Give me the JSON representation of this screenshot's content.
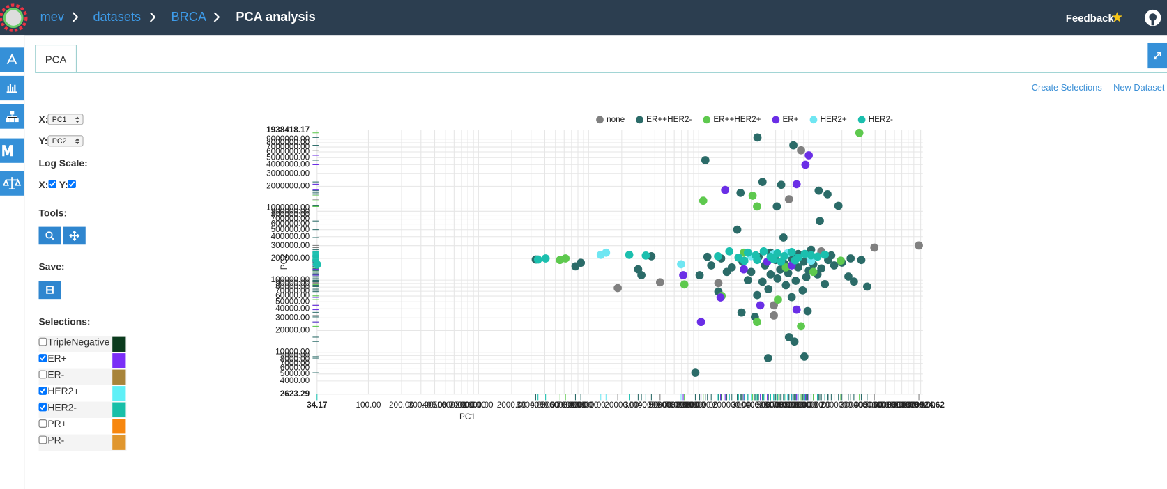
{
  "navbar": {
    "crumbs": [
      "mev",
      "datasets",
      "BRCA"
    ],
    "title": "PCA analysis",
    "feedback": "Feedback"
  },
  "tabs": [
    "PCA"
  ],
  "actions": [
    "Create Selections",
    "New Dataset"
  ],
  "controls": {
    "x_label": "X:",
    "x_value": "PC1",
    "y_label": "Y:",
    "y_value": "PC2",
    "log_scale": "Log Scale:",
    "log_x_label": "X:",
    "log_y_label": "Y:",
    "tools": "Tools:",
    "save": "Save:",
    "selections": "Selections:"
  },
  "selections": [
    {
      "name": "TripleNegative",
      "checked": false,
      "color": "#0b3b1d"
    },
    {
      "name": "ER+",
      "checked": true,
      "color": "#7b2ff7"
    },
    {
      "name": "ER-",
      "checked": false,
      "color": "#a8843a"
    },
    {
      "name": "HER2+",
      "checked": true,
      "color": "#5ff0f7"
    },
    {
      "name": "HER2-",
      "checked": true,
      "color": "#18bfa8"
    },
    {
      "name": "PR+",
      "checked": false,
      "color": "#f7870f"
    },
    {
      "name": "PR-",
      "checked": false,
      "color": "#e0962e"
    }
  ],
  "chart_data": {
    "type": "scatter",
    "x_label": "PC1",
    "y_label": "PC2",
    "log_x": true,
    "log_y": true,
    "grid": true,
    "legend": "top",
    "xlim": [
      34.17,
      10379924.62
    ],
    "ylim": [
      2623.29,
      12000000
    ],
    "y_top_label": "1938418.17",
    "xticks": [
      34.17,
      {
        "value": 100,
        "label": "100.00"
      },
      {
        "value": 200,
        "label": "200.00"
      },
      {
        "value": 300,
        "label": "300.00"
      },
      {
        "value": 400,
        "label": "400.00"
      },
      {
        "value": 500,
        "label": "500.00"
      },
      {
        "value": 600,
        "label": "600.00"
      },
      {
        "value": 700,
        "label": "700.00"
      },
      {
        "value": 800,
        "label": "800.00"
      },
      {
        "value": 900,
        "label": "900.00"
      },
      {
        "value": 1000,
        "label": "1000.00"
      },
      {
        "value": 2000,
        "label": "2000.00"
      },
      {
        "value": 3000,
        "label": "3000.00"
      },
      {
        "value": 4000,
        "label": "4000.00"
      },
      {
        "value": 5000,
        "label": "5000.00"
      },
      {
        "value": 6000,
        "label": "6000.00"
      },
      {
        "value": 7000,
        "label": "7000.00"
      },
      {
        "value": 8000,
        "label": "8000.00"
      },
      {
        "value": 9000,
        "label": "9000.00"
      },
      {
        "value": 10000,
        "label": "10000.00"
      },
      {
        "value": 20000,
        "label": "20000.00"
      },
      {
        "value": 30000,
        "label": "30000.00"
      },
      {
        "value": 40000,
        "label": "40000.00"
      },
      {
        "value": 50000,
        "label": "50000.00"
      },
      {
        "value": 60000,
        "label": "60000.00"
      },
      {
        "value": 70000,
        "label": "70000.00"
      },
      {
        "value": 80000,
        "label": "80000.00"
      },
      {
        "value": 90000,
        "label": "90000.00"
      },
      {
        "value": 100000,
        "label": "100000.00"
      },
      {
        "value": 200000,
        "label": "200000.00"
      },
      {
        "value": 300000,
        "label": "300000.00"
      },
      {
        "value": 400000,
        "label": "400000.00"
      },
      {
        "value": 500000,
        "label": "500000.00"
      },
      {
        "value": 600000,
        "label": "600000.00"
      },
      {
        "value": 700000,
        "label": "700000.00"
      },
      {
        "value": 800000,
        "label": "800000.00"
      },
      {
        "value": 900000,
        "label": "900000.00"
      },
      {
        "value": 1000000,
        "label": "1000000.00"
      },
      {
        "value": 2000000,
        "label": "2000000.00"
      },
      {
        "value": 3000000,
        "label": "3000000.00"
      },
      {
        "value": 4000000,
        "label": "4000000.00"
      },
      {
        "value": 5000000,
        "label": "5000000.00"
      },
      {
        "value": 6000000,
        "label": "6000000.00"
      },
      {
        "value": 7000000,
        "label": "7000000.00"
      },
      {
        "value": 8000000,
        "label": "8000000.00"
      },
      {
        "value": 9000000,
        "label": "9000000.00"
      },
      10379924.62
    ],
    "yticks": [
      2623.29,
      {
        "value": 4000,
        "label": "4000.00"
      },
      {
        "value": 5000,
        "label": "5000.00"
      },
      {
        "value": 6000,
        "label": "6000.00"
      },
      {
        "value": 7000,
        "label": "7000.00"
      },
      {
        "value": 8000,
        "label": "8000.00"
      },
      {
        "value": 9000,
        "label": "9000.00"
      },
      {
        "value": 10000,
        "label": "10000.00"
      },
      {
        "value": 20000,
        "label": "20000.00"
      },
      {
        "value": 30000,
        "label": "30000.00"
      },
      {
        "value": 40000,
        "label": "40000.00"
      },
      {
        "value": 50000,
        "label": "50000.00"
      },
      {
        "value": 60000,
        "label": "60000.00"
      },
      {
        "value": 70000,
        "label": "70000.00"
      },
      {
        "value": 80000,
        "label": "80000.00"
      },
      {
        "value": 90000,
        "label": "90000.00"
      },
      {
        "value": 100000,
        "label": "100000.00"
      },
      {
        "value": 200000,
        "label": "200000.00"
      },
      {
        "value": 300000,
        "label": "300000.00"
      },
      {
        "value": 400000,
        "label": "400000.00"
      },
      {
        "value": 500000,
        "label": "500000.00"
      },
      {
        "value": 600000,
        "label": "600000.00"
      },
      {
        "value": 700000,
        "label": "700000.00"
      },
      {
        "value": 800000,
        "label": "800000.00"
      },
      {
        "value": 900000,
        "label": "900000.00"
      },
      {
        "value": 1000000,
        "label": "1000000.00"
      },
      {
        "value": 2000000,
        "label": "2000000.00"
      },
      {
        "value": 3000000,
        "label": "3000000.00"
      },
      {
        "value": 4000000,
        "label": "4000000.00"
      },
      {
        "value": 5000000,
        "label": "5000000.00"
      },
      {
        "value": 6000000,
        "label": "6000000.00"
      },
      {
        "value": 7000000,
        "label": "7000000.00"
      },
      {
        "value": 8000000,
        "label": "8000000.00"
      },
      {
        "value": 9000000,
        "label": "9000000.00"
      }
    ],
    "series": [
      {
        "name": "none",
        "color": "#808080",
        "x": [
          10000000,
          3940000,
          18400,
          44600,
          482000,
          482000,
          661000,
          151000,
          851000,
          1300000
        ],
        "y": [
          302000,
          282000,
          77600,
          93300,
          44700,
          32300,
          1320000,
          91000,
          6300000,
          250000
        ]
      },
      {
        "name": "ER++HER2-",
        "color": "#2b6b68",
        "x": [
          342000,
          115000,
          725000,
          380000,
          562000,
          1230000,
          1480000,
          1860000,
          240000,
          513000,
          1260000,
          224000,
          589000,
          1050000,
          3311,
          8500,
          7600,
          28200,
          30200,
          37200,
          93300,
          427000,
          912000,
          661000,
          741000,
          245000,
          324000,
          977000,
          151000,
          102000,
          2290000,
          3390000,
          2570000,
          160000,
          200000,
          250000,
          300000,
          350000,
          400000,
          450000,
          500000,
          550000,
          600000,
          650000,
          700000,
          800000,
          900000,
          1000000,
          1100000,
          1300000,
          1500000,
          1700000,
          2000000,
          2400000,
          180000,
          280000,
          380000,
          520000,
          760000,
          950000,
          1200000,
          430000,
          620000,
          880000,
          340000,
          700000,
          1400000,
          130000,
          120000,
          3000000,
          450000,
          800000,
          1600000
        ],
        "y": [
          9500000,
          4600000,
          7400000,
          2300000,
          2100000,
          1740000,
          1550000,
          1070000,
          1620000,
          1050000,
          661000,
          501000,
          389000,
          263000,
          193000,
          174000,
          155000,
          141000,
          117000,
          214000,
          5200,
          8300,
          8700,
          16200,
          14100,
          35500,
          30900,
          37200,
          69200,
          117000,
          112000,
          81300,
          95500,
          200000,
          150000,
          180000,
          130000,
          210000,
          160000,
          120000,
          190000,
          140000,
          170000,
          125000,
          200000,
          150000,
          180000,
          135000,
          165000,
          145000,
          190000,
          160000,
          175000,
          200000,
          130000,
          100000,
          95000,
          105000,
          98000,
          110000,
          120000,
          75000,
          85000,
          72000,
          62000,
          58000,
          88000,
          160000,
          210000,
          190000,
          240000,
          230000,
          220000
        ]
      },
      {
        "name": "ER++HER2+",
        "color": "#5ec94e",
        "x": [
          2880000,
          110000,
          309000,
          339000,
          6170,
          74100,
          162000,
          339000,
          851000,
          525000,
          1950000,
          257000,
          5500,
          620000,
          1100000
        ],
        "y": [
          11000000,
          1260000,
          1480000,
          1050000,
          200000,
          87100,
          60300,
          26300,
          22900,
          53700,
          186000,
          240000,
          190000,
          150000,
          130000
        ]
      },
      {
        "name": "ER+",
        "color": "#6a2ee6",
        "x": [
          174000,
          1000000,
          933000,
          776000,
          105000,
          158000,
          363000,
          776000,
          72400,
          257000,
          700000,
          420000
        ],
        "y": [
          1780000,
          5370000,
          3980000,
          2140000,
          26300,
          57500,
          44700,
          38900,
          117000,
          141000,
          160000,
          180000
        ]
      },
      {
        "name": "HER2+",
        "color": "#6fe6f2",
        "x": [
          14400,
          12900,
          69200,
          479000,
          1050000,
          300000,
          640000
        ],
        "y": [
          240000,
          224000,
          166000,
          229000,
          186000,
          215000,
          235000
        ]
      },
      {
        "name": "HER2-",
        "color": "#1bbfae",
        "x": [
          34.17,
          3470,
          4070,
          23400,
          33100,
          150000,
          190000,
          230000,
          280000,
          330000,
          390000,
          450000,
          520000,
          600000,
          700000,
          800000,
          920000,
          1050000,
          1200000,
          1400000,
          260000,
          340000,
          480000,
          560000,
          750000
        ],
        "y": [
          165000,
          193000,
          200000,
          224000,
          219000,
          214000,
          250000,
          205000,
          240000,
          220000,
          250000,
          210000,
          235000,
          215000,
          245000,
          205000,
          230000,
          220000,
          212000,
          225000,
          185000,
          190000,
          195000,
          180000,
          188000
        ]
      }
    ]
  }
}
